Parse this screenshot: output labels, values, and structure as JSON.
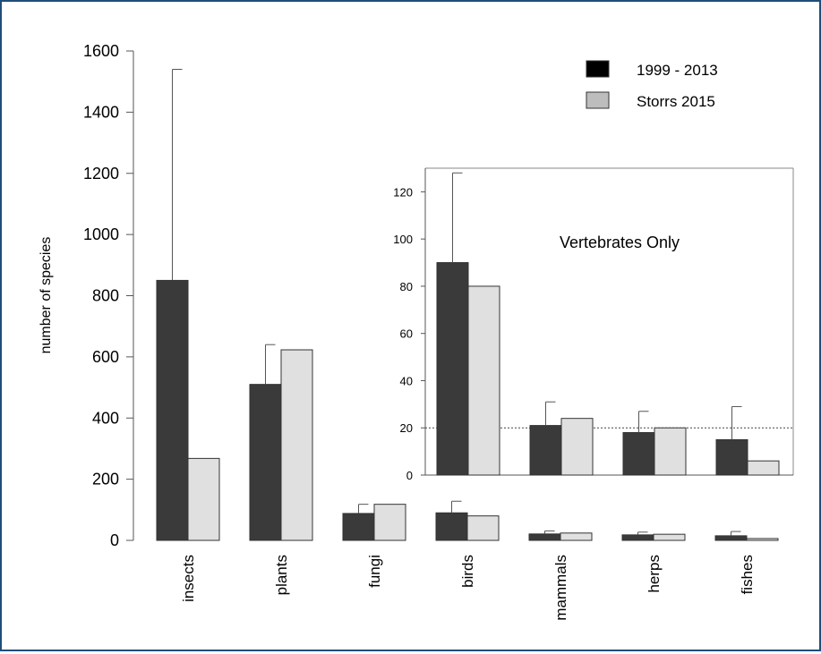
{
  "chart_data": [
    {
      "type": "bar",
      "ylabel": "number of species",
      "ylim": [
        0,
        1600
      ],
      "yticks": [
        0,
        200,
        400,
        600,
        800,
        1000,
        1200,
        1400,
        1600
      ],
      "categories": [
        "insects",
        "plants",
        "fungi",
        "birds",
        "mammals",
        "herps",
        "fishes"
      ],
      "series": [
        {
          "name": "1999 - 2013",
          "color": "#3a3a3a",
          "values": [
            850,
            510,
            88,
            90,
            21,
            18,
            15
          ],
          "error_upper": [
            1540,
            640,
            118,
            128,
            31,
            27,
            29
          ]
        },
        {
          "name": "Storrs 2015",
          "color": "#e0e0e0",
          "values": [
            268,
            623,
            118,
            80,
            24,
            20,
            6
          ]
        }
      ],
      "legend_position": "top-right"
    },
    {
      "type": "bar",
      "title": "Vertebrates Only",
      "ylim": [
        0,
        130
      ],
      "yticks": [
        0,
        20,
        40,
        60,
        80,
        100,
        120
      ],
      "reference_line": 20,
      "categories": [
        "birds",
        "mammals",
        "herps",
        "fishes"
      ],
      "series": [
        {
          "name": "1999 - 2013",
          "color": "#3a3a3a",
          "values": [
            90,
            21,
            18,
            15
          ],
          "error_upper": [
            128,
            31,
            27,
            29
          ]
        },
        {
          "name": "Storrs 2015",
          "color": "#e0e0e0",
          "values": [
            80,
            24,
            20,
            6
          ]
        }
      ]
    }
  ]
}
